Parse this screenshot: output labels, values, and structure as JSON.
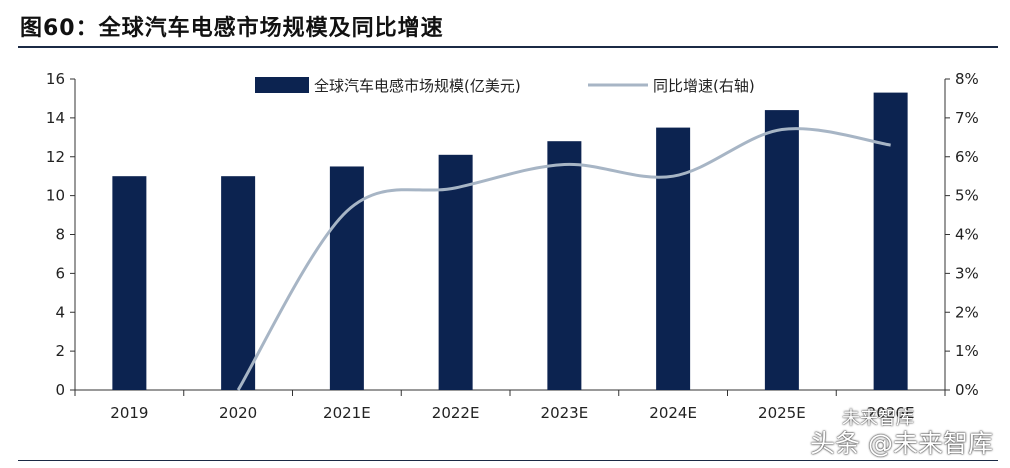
{
  "figure_title": "图60：全球汽车电感市场规模及同比增速",
  "watermark_small": "未来智库",
  "watermark_big": "头条 @未来智库",
  "colors": {
    "bar": "#0c2350",
    "line": "#a7b5c5",
    "axis": "#333333"
  },
  "chart_data": {
    "type": "bar+line",
    "title": "",
    "categories": [
      "2019",
      "2020",
      "2021E",
      "2022E",
      "2023E",
      "2024E",
      "2025E",
      "2026E"
    ],
    "series": [
      {
        "name": "全球汽车电感市场规模(亿美元)",
        "type": "bar",
        "axis": "left",
        "values": [
          11.0,
          11.0,
          11.5,
          12.1,
          12.8,
          13.5,
          14.4,
          15.3
        ]
      },
      {
        "name": "同比增速(右轴)",
        "type": "line",
        "axis": "right",
        "values": [
          null,
          0.0,
          4.6,
          5.2,
          5.8,
          5.5,
          6.7,
          6.3
        ]
      }
    ],
    "ylim_left": [
      0,
      16
    ],
    "yticks_left": [
      0,
      2,
      4,
      6,
      8,
      10,
      12,
      14,
      16
    ],
    "ylim_right": [
      0,
      8
    ],
    "yticks_right": [
      "0%",
      "1%",
      "2%",
      "3%",
      "4%",
      "5%",
      "6%",
      "7%",
      "8%"
    ],
    "grid": false,
    "legend_position": "top-center"
  }
}
